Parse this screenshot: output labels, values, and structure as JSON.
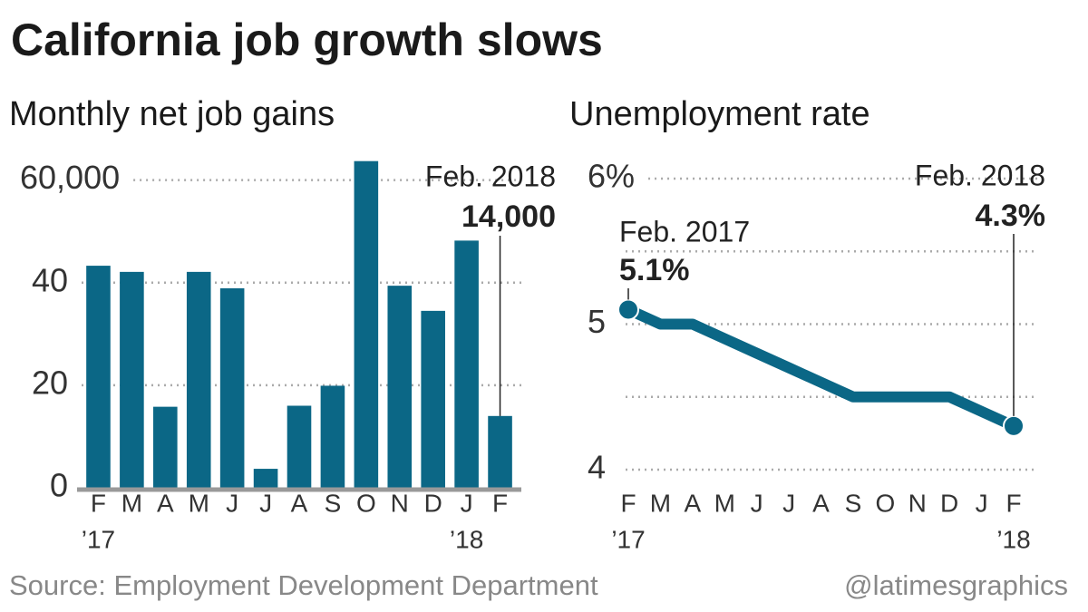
{
  "title": "California job growth slows",
  "source": "Source: Employment Development Department",
  "credit": "@latimesgraphics",
  "chart_data": [
    {
      "type": "bar",
      "title": "Monthly net job gains",
      "categories": [
        "F",
        "M",
        "A",
        "M",
        "J",
        "J",
        "A",
        "S",
        "O",
        "N",
        "D",
        "J",
        "F"
      ],
      "year_labels": [
        "’17",
        "’18"
      ],
      "values": [
        43300,
        42100,
        15800,
        42100,
        38900,
        3700,
        16000,
        19900,
        63700,
        39400,
        34500,
        48200,
        14000
      ],
      "color": "#0b6786",
      "ylim": [
        0,
        64000
      ],
      "yticks": [
        0,
        {
          "value": 20000,
          "label": "20"
        },
        {
          "value": 40000,
          "label": "40"
        },
        {
          "value": 60000,
          "label": "60,000"
        }
      ],
      "grid": true,
      "annotation": {
        "label": "Feb. 2018",
        "value_label": "14,000"
      }
    },
    {
      "type": "line",
      "title": "Unemployment rate",
      "categories": [
        "F",
        "M",
        "A",
        "M",
        "J",
        "J",
        "A",
        "S",
        "O",
        "N",
        "D",
        "J",
        "F"
      ],
      "year_labels": [
        "’17",
        "’18"
      ],
      "values": [
        5.1,
        5.0,
        5.0,
        4.9,
        4.8,
        4.7,
        4.6,
        4.5,
        4.5,
        4.5,
        4.5,
        4.4,
        4.3
      ],
      "color": "#0b6786",
      "ylim": [
        4,
        6
      ],
      "yticks": [
        4,
        5,
        {
          "value": 6,
          "label": "6%"
        }
      ],
      "minor_yticks": [
        4.5,
        5.5
      ],
      "grid": true,
      "annotations": [
        {
          "label": "Feb. 2017",
          "value_label": "5.1%"
        },
        {
          "label": "Feb. 2018",
          "value_label": "4.3%"
        }
      ]
    }
  ]
}
